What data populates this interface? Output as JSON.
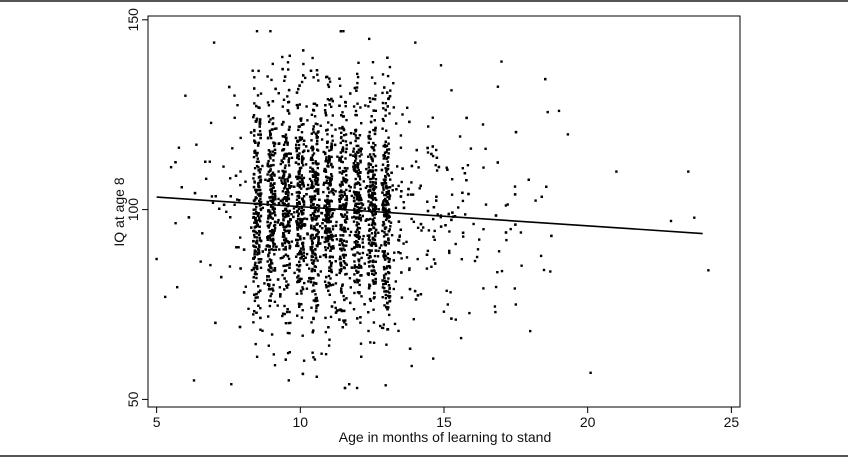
{
  "chart_data": {
    "type": "scatter",
    "title": "",
    "xlabel": "Age in months of learning to stand",
    "ylabel": "IQ at age 8",
    "xlim": [
      4.7,
      25.3
    ],
    "ylim": [
      48,
      151
    ],
    "xticks": [
      5,
      10,
      15,
      20,
      25
    ],
    "yticks": [
      50,
      100,
      150
    ],
    "grid": false,
    "legend": "none",
    "colors": {
      "points": "#000000",
      "fit_line": "#000000",
      "background": "#ffffff",
      "outer_border": "#555555"
    },
    "fit_line": {
      "x": [
        5,
        24
      ],
      "y": [
        103.3,
        93.7
      ]
    },
    "series": [
      {
        "name": "",
        "point_count_approx": 3400,
        "x_columns_months": [
          8.5,
          9.0,
          9.5,
          10.0,
          10.5,
          11.0,
          11.5,
          12.0,
          12.5,
          13.0
        ],
        "notable_points": [
          {
            "x": 7.0,
            "y": 144
          },
          {
            "x": 11.5,
            "y": 147
          },
          {
            "x": 14.0,
            "y": 144
          },
          {
            "x": 17.0,
            "y": 139
          },
          {
            "x": 6.0,
            "y": 130
          },
          {
            "x": 19.0,
            "y": 126
          },
          {
            "x": 23.5,
            "y": 110
          },
          {
            "x": 21.0,
            "y": 110
          },
          {
            "x": 24.2,
            "y": 84
          },
          {
            "x": 5.0,
            "y": 87
          },
          {
            "x": 5.3,
            "y": 77
          },
          {
            "x": 6.3,
            "y": 55
          },
          {
            "x": 7.6,
            "y": 54
          },
          {
            "x": 9.6,
            "y": 55
          },
          {
            "x": 11.7,
            "y": 54
          },
          {
            "x": 20.1,
            "y": 57
          },
          {
            "x": 18.0,
            "y": 68
          },
          {
            "x": 17.5,
            "y": 75
          },
          {
            "x": 22.9,
            "y": 97
          }
        ]
      }
    ]
  }
}
